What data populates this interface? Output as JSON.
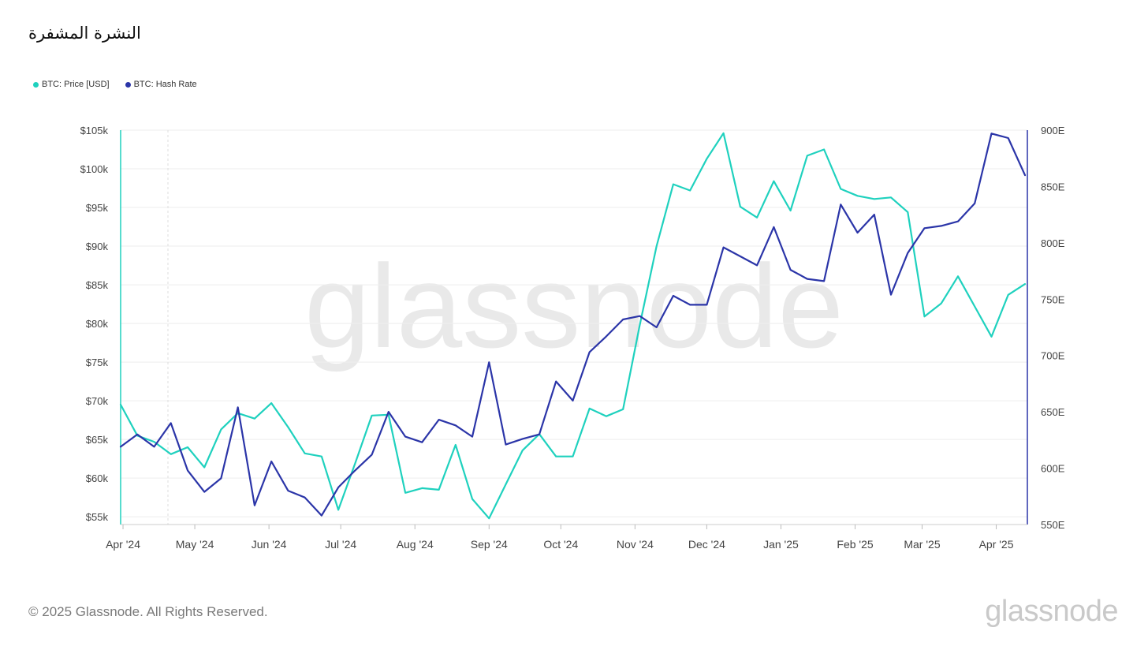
{
  "header": {
    "title": "النشرة المشفرة"
  },
  "colors": {
    "price": "#1fd1be",
    "hashrate": "#2b35a8",
    "grid": "#eeeeee",
    "axis_text": "#444444"
  },
  "watermark": "glassnode",
  "footer": {
    "copyright": "© 2025 Glassnode. All Rights Reserved.",
    "logo": "glassnode"
  },
  "chart_data": {
    "type": "line",
    "title": "",
    "legend_position": "top-left",
    "grid": true,
    "x_tick_labels": [
      "Apr '24",
      "May '24",
      "Jun '24",
      "Jul '24",
      "Aug '24",
      "Sep '24",
      "Oct '24",
      "Nov '24",
      "Dec '24",
      "Jan '25",
      "Feb '25",
      "Mar '25",
      "Apr '25"
    ],
    "x_tick_dates": [
      "2024-04-01",
      "2024-05-01",
      "2024-06-01",
      "2024-07-01",
      "2024-08-01",
      "2024-09-01",
      "2024-10-01",
      "2024-11-01",
      "2024-12-01",
      "2025-01-01",
      "2025-02-01",
      "2025-03-01",
      "2025-04-01"
    ],
    "x_range": [
      "2024-03-31",
      "2025-04-14"
    ],
    "y_left": {
      "range": [
        54000,
        105000
      ],
      "ticks": [
        55000,
        60000,
        65000,
        70000,
        75000,
        80000,
        85000,
        90000,
        95000,
        100000,
        105000
      ],
      "tick_labels": [
        "$55k",
        "$60k",
        "$65k",
        "$70k",
        "$75k",
        "$80k",
        "$85k",
        "$90k",
        "$95k",
        "$100k",
        "$105k"
      ]
    },
    "y_right": {
      "range": [
        550,
        900
      ],
      "ticks": [
        550,
        600,
        650,
        700,
        750,
        800,
        850,
        900
      ],
      "tick_labels": [
        "550E",
        "600E",
        "650E",
        "700E",
        "750E",
        "800E",
        "850E",
        "900E"
      ]
    },
    "series": [
      {
        "name": "BTC: Price [USD]",
        "axis": "left",
        "points": [
          [
            "2024-03-31",
            69500
          ],
          [
            "2024-04-07",
            65500
          ],
          [
            "2024-04-14",
            64700
          ],
          [
            "2024-04-21",
            63100
          ],
          [
            "2024-04-28",
            64000
          ],
          [
            "2024-05-05",
            61400
          ],
          [
            "2024-05-12",
            66300
          ],
          [
            "2024-05-19",
            68400
          ],
          [
            "2024-05-26",
            67700
          ],
          [
            "2024-06-02",
            69700
          ],
          [
            "2024-06-09",
            66600
          ],
          [
            "2024-06-16",
            63200
          ],
          [
            "2024-06-23",
            62800
          ],
          [
            "2024-06-30",
            55900
          ],
          [
            "2024-07-07",
            61900
          ],
          [
            "2024-07-14",
            68100
          ],
          [
            "2024-07-21",
            68200
          ],
          [
            "2024-07-28",
            58100
          ],
          [
            "2024-08-04",
            58700
          ],
          [
            "2024-08-11",
            58500
          ],
          [
            "2024-08-18",
            64300
          ],
          [
            "2024-08-25",
            57300
          ],
          [
            "2024-09-01",
            54800
          ],
          [
            "2024-09-08",
            59200
          ],
          [
            "2024-09-15",
            63600
          ],
          [
            "2024-09-22",
            65700
          ],
          [
            "2024-09-29",
            62800
          ],
          [
            "2024-10-06",
            62800
          ],
          [
            "2024-10-13",
            69000
          ],
          [
            "2024-10-20",
            68000
          ],
          [
            "2024-10-27",
            68900
          ],
          [
            "2024-11-03",
            79800
          ],
          [
            "2024-11-10",
            90000
          ],
          [
            "2024-11-17",
            98000
          ],
          [
            "2024-11-24",
            97200
          ],
          [
            "2024-12-01",
            101300
          ],
          [
            "2024-12-08",
            104600
          ],
          [
            "2024-12-15",
            95100
          ],
          [
            "2024-12-22",
            93700
          ],
          [
            "2024-12-29",
            98400
          ],
          [
            "2025-01-05",
            94600
          ],
          [
            "2025-01-12",
            101700
          ],
          [
            "2025-01-19",
            102500
          ],
          [
            "2025-01-26",
            97400
          ],
          [
            "2025-02-02",
            96500
          ],
          [
            "2025-02-09",
            96100
          ],
          [
            "2025-02-16",
            96300
          ],
          [
            "2025-02-23",
            94400
          ],
          [
            "2025-03-02",
            80900
          ],
          [
            "2025-03-09",
            82600
          ],
          [
            "2025-03-16",
            86100
          ],
          [
            "2025-03-23",
            82200
          ],
          [
            "2025-03-30",
            78300
          ],
          [
            "2025-04-06",
            83700
          ],
          [
            "2025-04-13",
            85100
          ]
        ]
      },
      {
        "name": "BTC: Hash Rate",
        "axis": "right",
        "points": [
          [
            "2024-03-31",
            619
          ],
          [
            "2024-04-07",
            630
          ],
          [
            "2024-04-14",
            619
          ],
          [
            "2024-04-21",
            640
          ],
          [
            "2024-04-28",
            598
          ],
          [
            "2024-05-05",
            579
          ],
          [
            "2024-05-12",
            591
          ],
          [
            "2024-05-19",
            654
          ],
          [
            "2024-05-26",
            567
          ],
          [
            "2024-06-02",
            606
          ],
          [
            "2024-06-09",
            580
          ],
          [
            "2024-06-16",
            574
          ],
          [
            "2024-06-23",
            558
          ],
          [
            "2024-06-30",
            583
          ],
          [
            "2024-07-07",
            598
          ],
          [
            "2024-07-14",
            612
          ],
          [
            "2024-07-21",
            650
          ],
          [
            "2024-07-28",
            628
          ],
          [
            "2024-08-04",
            623
          ],
          [
            "2024-08-11",
            643
          ],
          [
            "2024-08-18",
            638
          ],
          [
            "2024-08-25",
            628
          ],
          [
            "2024-09-01",
            694
          ],
          [
            "2024-09-08",
            621
          ],
          [
            "2024-09-15",
            626
          ],
          [
            "2024-09-22",
            630
          ],
          [
            "2024-09-29",
            677
          ],
          [
            "2024-10-06",
            660
          ],
          [
            "2024-10-13",
            703
          ],
          [
            "2024-10-20",
            717
          ],
          [
            "2024-10-27",
            732
          ],
          [
            "2024-11-03",
            735
          ],
          [
            "2024-11-10",
            725
          ],
          [
            "2024-11-17",
            753
          ],
          [
            "2024-11-24",
            745
          ],
          [
            "2024-12-01",
            745
          ],
          [
            "2024-12-08",
            796
          ],
          [
            "2024-12-15",
            788
          ],
          [
            "2024-12-22",
            780
          ],
          [
            "2024-12-29",
            814
          ],
          [
            "2025-01-05",
            776
          ],
          [
            "2025-01-12",
            768
          ],
          [
            "2025-01-19",
            766
          ],
          [
            "2025-01-26",
            834
          ],
          [
            "2025-02-02",
            809
          ],
          [
            "2025-02-09",
            825
          ],
          [
            "2025-02-16",
            754
          ],
          [
            "2025-02-23",
            791
          ],
          [
            "2025-03-02",
            813
          ],
          [
            "2025-03-09",
            815
          ],
          [
            "2025-03-16",
            819
          ],
          [
            "2025-03-23",
            835
          ],
          [
            "2025-03-30",
            897
          ],
          [
            "2025-04-06",
            893
          ],
          [
            "2025-04-13",
            860
          ]
        ]
      }
    ]
  }
}
